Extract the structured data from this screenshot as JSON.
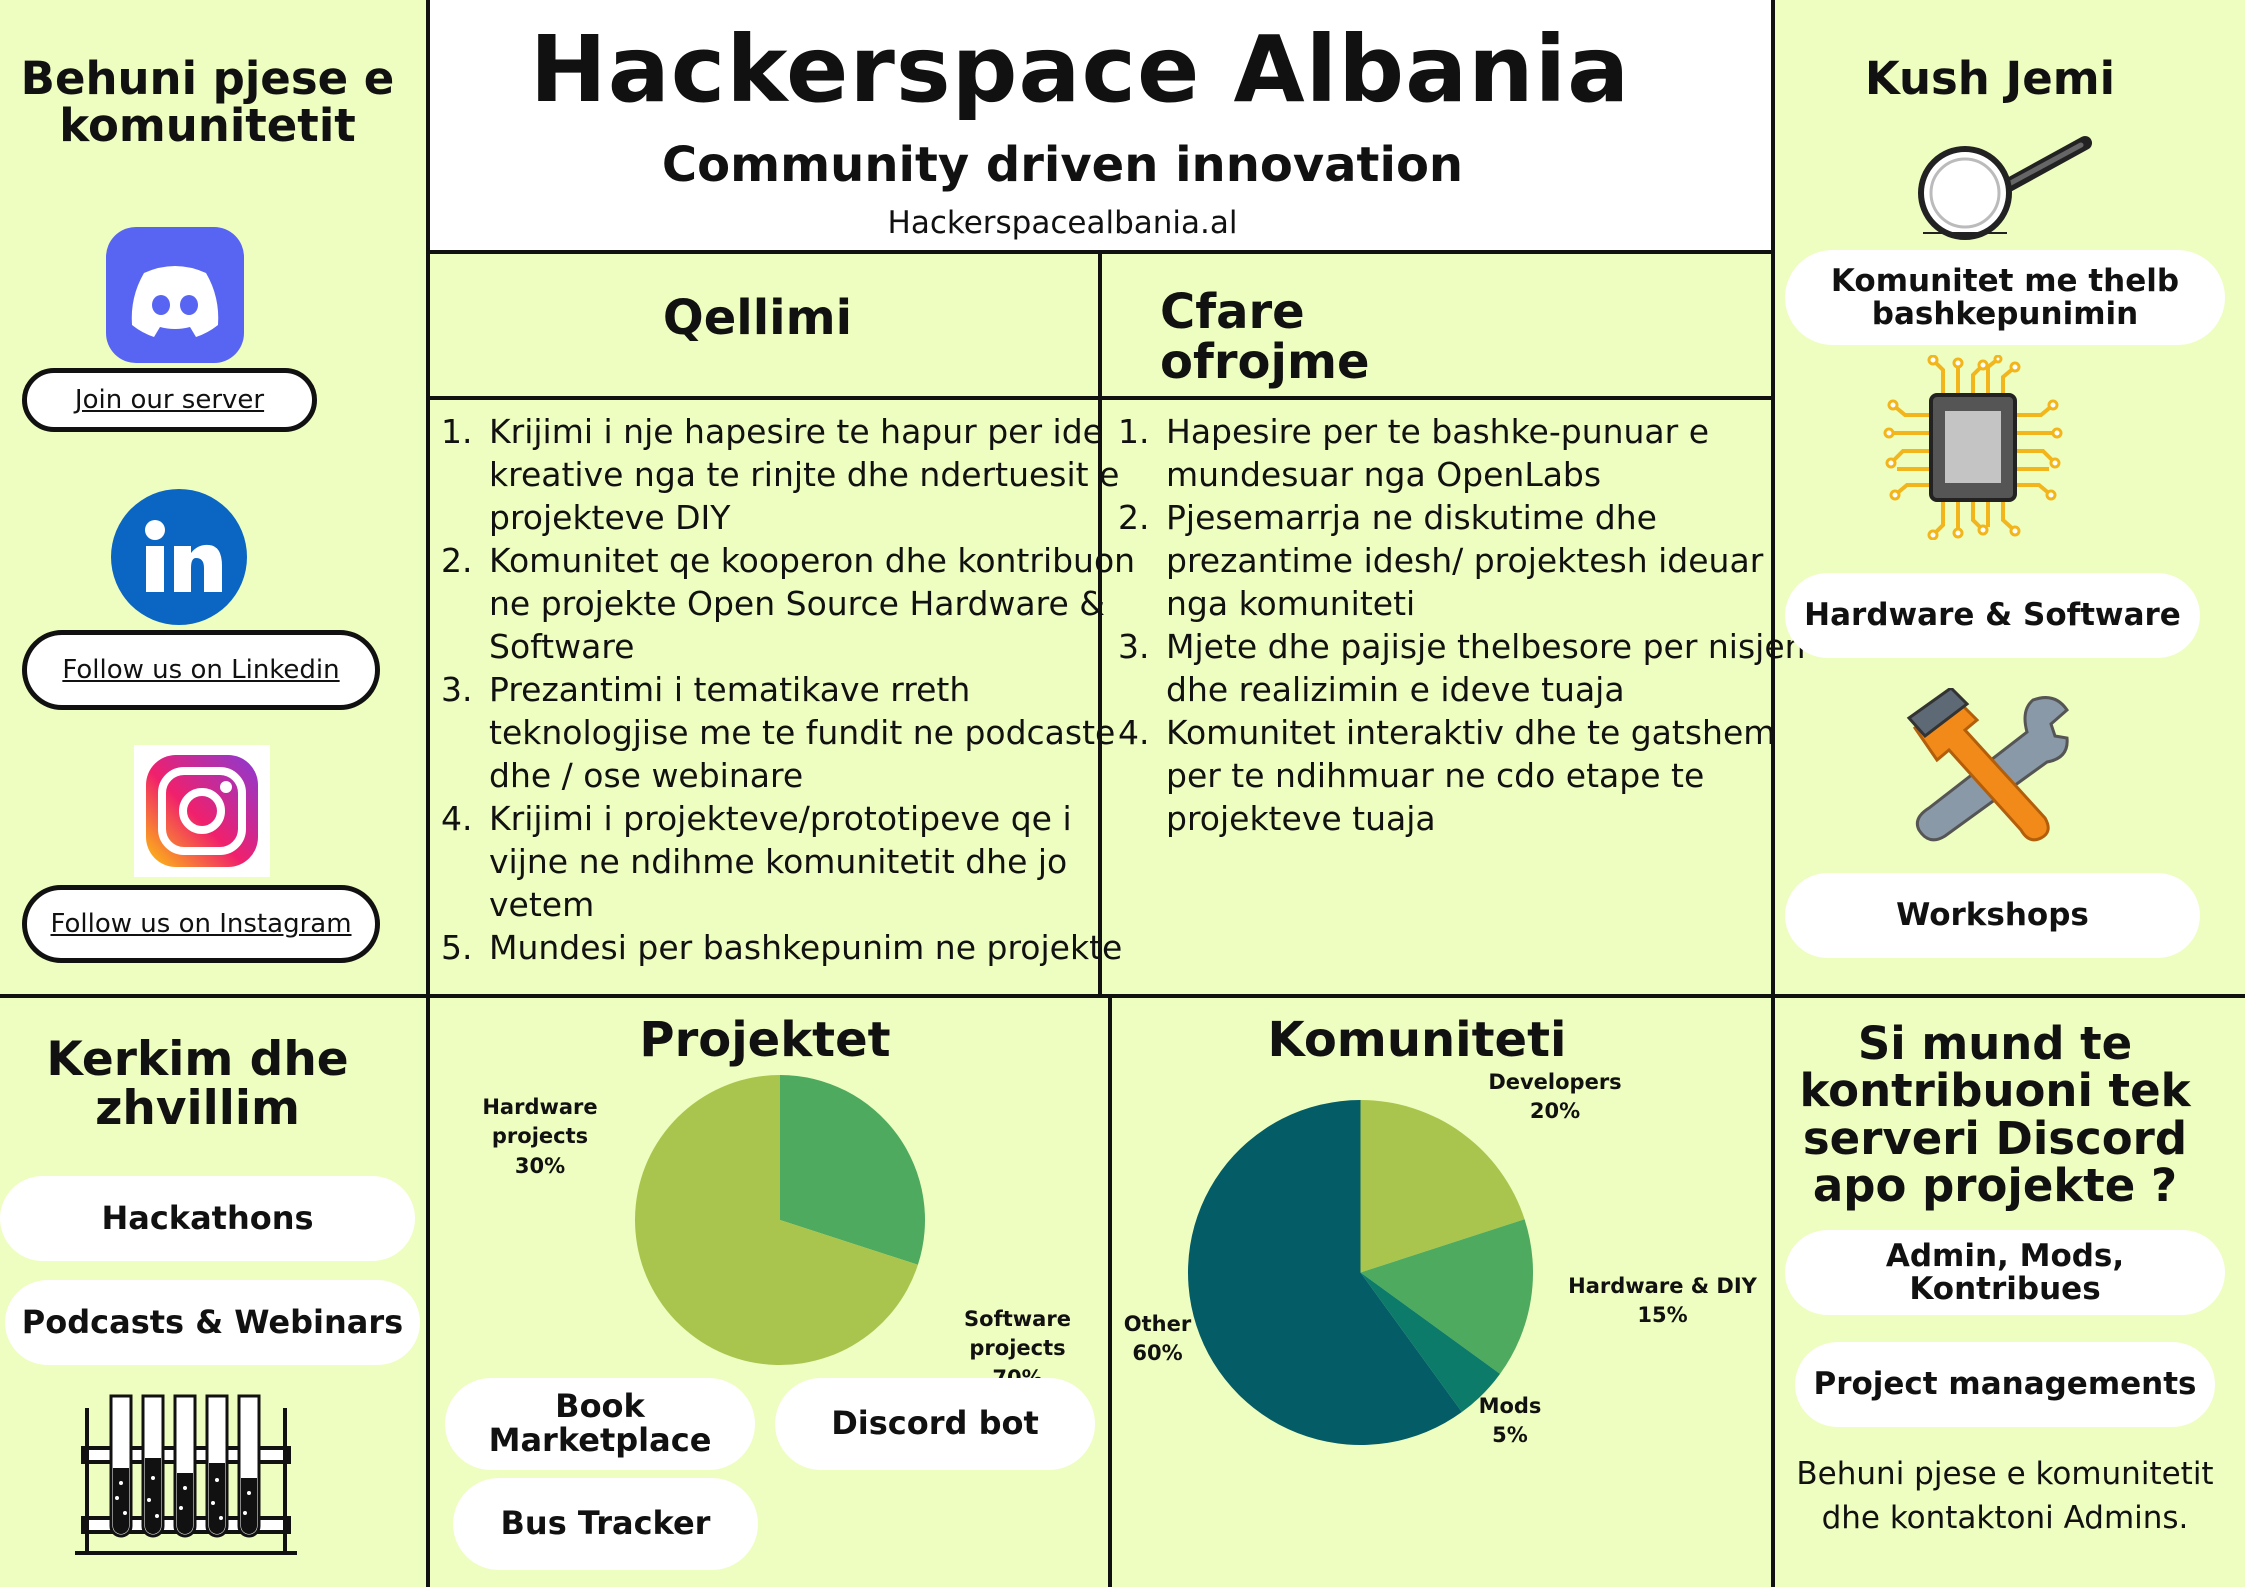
{
  "title": "Hackerspace Albania",
  "subtitle": "Community driven innovation",
  "website": "Hackerspacealbania.al",
  "left": {
    "heading": "Behuni pjese e komunitetit",
    "links": [
      "Join our server",
      "Follow us on Linkedin",
      "Follow us on Instagram"
    ]
  },
  "qellimi": {
    "heading": "Qellimi",
    "items": [
      "Krijimi i nje hapesire te hapur per ide kreative nga te rinjte dhe ndertuesit e projekteve DIY",
      "Komunitet qe kooperon dhe kontribuon ne projekte Open Source Hardware & Software",
      "Prezantimi i tematikave rreth teknologjise me te fundit ne podcaste dhe / ose webinare",
      " Krijimi i projekteve/prototipeve qe i vijne ne ndihme komunitetit dhe jo vetem",
      "Mundesi per bashkepunim ne projekte"
    ]
  },
  "ofrojme": {
    "heading": "Cfare ofrojme",
    "items": [
      "Hapesire per te bashke-punuar e mundesuar nga OpenLabs",
      "Pjesemarrja ne diskutime dhe prezantime idesh/ projektesh ideuar nga komuniteti",
      "Mjete dhe pajisje thelbesore per nisjen dhe realizimin e ideve tuaja",
      "Komunitet interaktiv dhe te gatshem per te ndihmuar ne cdo etape te projekteve tuaja"
    ]
  },
  "kush_jemi": {
    "heading": "Kush Jemi",
    "items": [
      "Komunitet me thelb bashkepunimin",
      "Hardware & Software",
      "Workshops"
    ]
  },
  "kerkim": {
    "heading": "Kerkim dhe zhvillim",
    "items": [
      "Hackathons",
      "Podcasts & Webinars"
    ]
  },
  "projektet": {
    "heading": "Projektet",
    "items": [
      "Book Marketplace",
      "Discord bot",
      "Bus Tracker"
    ]
  },
  "komuniteti": {
    "heading": "Komuniteti"
  },
  "kontribuo": {
    "heading": "Si mund te kontribuoni tek serveri Discord apo projekte ?",
    "items": [
      "Admin, Mods, Kontribues",
      "Project managements"
    ],
    "note": "Behuni pjese e komunitetit dhe kontaktoni Admins."
  },
  "chart_data": [
    {
      "type": "pie",
      "title": "Projektet",
      "categories": [
        "Hardware projects",
        "Software projects"
      ],
      "values": [
        30,
        70
      ],
      "colors": [
        "#4eaa5e",
        "#a9c54e"
      ]
    },
    {
      "type": "pie",
      "title": "Komuniteti",
      "categories": [
        "Developers",
        "Hardware & DIY",
        "Mods",
        "Other"
      ],
      "values": [
        20,
        15,
        5,
        60
      ],
      "colors": [
        "#a9c54e",
        "#4eaa5e",
        "#0c7b6a",
        "#035c66"
      ]
    }
  ],
  "colors": {
    "background": "#eefdc0",
    "discord": "#5865f2",
    "linkedin": "#0a66c2"
  },
  "icons": [
    "discord-icon",
    "linkedin-icon",
    "instagram-icon",
    "magnifier-icon",
    "chip-icon",
    "tools-icon",
    "test-tubes-icon"
  ]
}
